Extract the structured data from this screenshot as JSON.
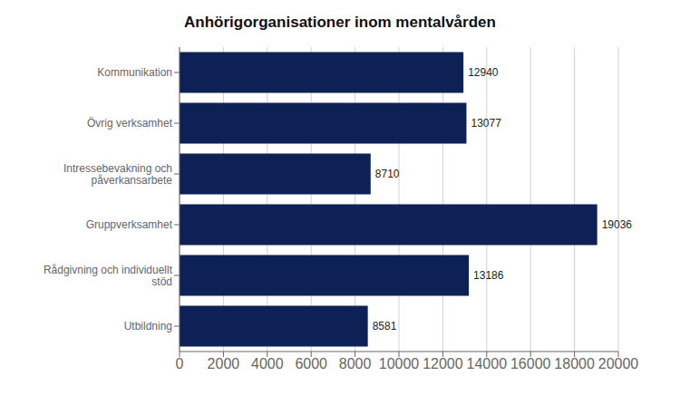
{
  "chart_data": {
    "type": "bar",
    "title": "Anhörigorganisationer inom mentalvården",
    "categories": [
      "Utbildning",
      "Rådgivning och individuellt\nstöd",
      "Gruppverksamhet",
      "Intressebevakning och\npåverkansarbete",
      "Övrig verksamhet",
      "Kommunikation"
    ],
    "values": [
      8581,
      13186,
      19036,
      8710,
      13077,
      12940
    ],
    "color": "#0d2157",
    "orientation": "horizontal",
    "xlim": [
      0,
      20000
    ],
    "xticks": [
      0,
      2000,
      4000,
      6000,
      8000,
      10000,
      12000,
      14000,
      16000,
      18000,
      20000
    ],
    "grid": true,
    "data_labels": true
  }
}
